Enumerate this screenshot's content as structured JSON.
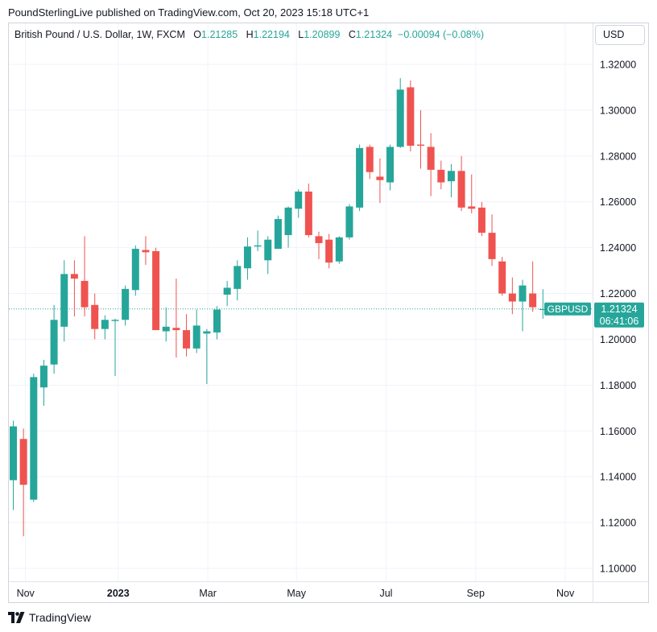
{
  "header": {
    "publisher": "PoundSterlingLive published on TradingView.com, Oct 20, 2023 15:18 UTC+1"
  },
  "legend": {
    "symbol": "British Pound / U.S. Dollar, 1W, FXCM",
    "o_label": "O",
    "o_value": "1.21285",
    "h_label": "H",
    "h_value": "1.22194",
    "l_label": "L",
    "l_value": "1.20899",
    "c_label": "C",
    "c_value": "1.21324",
    "change": "−0.00094 (−0.08%)"
  },
  "currency_button": "USD",
  "price_badge": {
    "symbol": "GBPUSD",
    "price": "1.21324",
    "countdown": "06:41:06"
  },
  "footer": {
    "brand": "TradingView"
  },
  "colors": {
    "up": "#26a69a",
    "down": "#ef5350",
    "grid": "#f0f3fa",
    "axis_text": "#131722"
  },
  "chart_data": {
    "type": "candlestick",
    "title": "British Pound / U.S. Dollar, 1W, FXCM",
    "ylim": [
      1.09,
      1.32
    ],
    "y_ticks": [
      "1.32000",
      "1.30000",
      "1.28000",
      "1.26000",
      "1.24000",
      "1.22000",
      "1.20000",
      "1.18000",
      "1.16000",
      "1.14000",
      "1.12000",
      "1.10000"
    ],
    "x_ticks": [
      {
        "label": "Nov",
        "bar": 1.2
      },
      {
        "label": "2023",
        "bar": 10.3,
        "bold": true
      },
      {
        "label": "Mar",
        "bar": 19.1
      },
      {
        "label": "May",
        "bar": 27.8
      },
      {
        "label": "Jul",
        "bar": 36.6
      },
      {
        "label": "Sep",
        "bar": 45.4
      },
      {
        "label": "Nov",
        "bar": 54.2
      }
    ],
    "last_price": 1.21324,
    "candles": [
      {
        "o": 1.1385,
        "h": 1.1645,
        "l": 1.1255,
        "c": 1.162
      },
      {
        "o": 1.1565,
        "h": 1.161,
        "l": 1.114,
        "c": 1.1365
      },
      {
        "o": 1.13,
        "h": 1.185,
        "l": 1.129,
        "c": 1.1835
      },
      {
        "o": 1.179,
        "h": 1.191,
        "l": 1.171,
        "c": 1.1885
      },
      {
        "o": 1.189,
        "h": 1.215,
        "l": 1.185,
        "c": 1.2085
      },
      {
        "o": 1.2055,
        "h": 1.2345,
        "l": 1.199,
        "c": 1.2285
      },
      {
        "o": 1.2285,
        "h": 1.2345,
        "l": 1.21,
        "c": 1.2265
      },
      {
        "o": 1.2255,
        "h": 1.245,
        "l": 1.21,
        "c": 1.214
      },
      {
        "o": 1.215,
        "h": 1.22,
        "l": 1.2,
        "c": 1.2045
      },
      {
        "o": 1.2045,
        "h": 1.2105,
        "l": 1.2,
        "c": 1.2085
      },
      {
        "o": 1.208,
        "h": 1.209,
        "l": 1.184,
        "c": 1.2085
      },
      {
        "o": 1.2085,
        "h": 1.2235,
        "l": 1.206,
        "c": 1.222
      },
      {
        "o": 1.2215,
        "h": 1.241,
        "l": 1.219,
        "c": 1.2395
      },
      {
        "o": 1.239,
        "h": 1.245,
        "l": 1.2325,
        "c": 1.238
      },
      {
        "o": 1.2385,
        "h": 1.24,
        "l": 1.2045,
        "c": 1.204
      },
      {
        "o": 1.2035,
        "h": 1.214,
        "l": 1.199,
        "c": 1.2055
      },
      {
        "o": 1.205,
        "h": 1.2265,
        "l": 1.192,
        "c": 1.204
      },
      {
        "o": 1.204,
        "h": 1.211,
        "l": 1.1925,
        "c": 1.196
      },
      {
        "o": 1.196,
        "h": 1.213,
        "l": 1.194,
        "c": 1.206
      },
      {
        "o": 1.2025,
        "h": 1.2045,
        "l": 1.1805,
        "c": 1.2035
      },
      {
        "o": 1.203,
        "h": 1.2145,
        "l": 1.2,
        "c": 1.213
      },
      {
        "o": 1.2195,
        "h": 1.2255,
        "l": 1.2145,
        "c": 1.2225
      },
      {
        "o": 1.222,
        "h": 1.2345,
        "l": 1.217,
        "c": 1.232
      },
      {
        "o": 1.231,
        "h": 1.2445,
        "l": 1.226,
        "c": 1.2405
      },
      {
        "o": 1.2405,
        "h": 1.2475,
        "l": 1.2385,
        "c": 1.241
      },
      {
        "o": 1.2345,
        "h": 1.245,
        "l": 1.2285,
        "c": 1.2435
      },
      {
        "o": 1.2395,
        "h": 1.254,
        "l": 1.2395,
        "c": 1.2525
      },
      {
        "o": 1.2455,
        "h": 1.258,
        "l": 1.24,
        "c": 1.2575
      },
      {
        "o": 1.257,
        "h": 1.2655,
        "l": 1.253,
        "c": 1.2645
      },
      {
        "o": 1.2645,
        "h": 1.268,
        "l": 1.2445,
        "c": 1.2455
      },
      {
        "o": 1.245,
        "h": 1.247,
        "l": 1.235,
        "c": 1.242
      },
      {
        "o": 1.2435,
        "h": 1.246,
        "l": 1.231,
        "c": 1.2335
      },
      {
        "o": 1.234,
        "h": 1.245,
        "l": 1.233,
        "c": 1.2445
      },
      {
        "o": 1.2445,
        "h": 1.259,
        "l": 1.2435,
        "c": 1.258
      },
      {
        "o": 1.2575,
        "h": 1.285,
        "l": 1.256,
        "c": 1.2835
      },
      {
        "o": 1.284,
        "h": 1.285,
        "l": 1.27,
        "c": 1.273
      },
      {
        "o": 1.271,
        "h": 1.279,
        "l": 1.2595,
        "c": 1.2695
      },
      {
        "o": 1.2685,
        "h": 1.285,
        "l": 1.265,
        "c": 1.284
      },
      {
        "o": 1.284,
        "h": 1.314,
        "l": 1.2835,
        "c": 1.309
      },
      {
        "o": 1.31,
        "h": 1.313,
        "l": 1.282,
        "c": 1.2845
      },
      {
        "o": 1.285,
        "h": 1.3,
        "l": 1.2745,
        "c": 1.2845
      },
      {
        "o": 1.284,
        "h": 1.29,
        "l": 1.2625,
        "c": 1.274
      },
      {
        "o": 1.274,
        "h": 1.278,
        "l": 1.2655,
        "c": 1.2685
      },
      {
        "o": 1.269,
        "h": 1.2765,
        "l": 1.262,
        "c": 1.2735
      },
      {
        "o": 1.2735,
        "h": 1.28,
        "l": 1.256,
        "c": 1.2575
      },
      {
        "o": 1.258,
        "h": 1.272,
        "l": 1.255,
        "c": 1.257
      },
      {
        "o": 1.2575,
        "h": 1.26,
        "l": 1.245,
        "c": 1.2465
      },
      {
        "o": 1.2465,
        "h": 1.2545,
        "l": 1.232,
        "c": 1.235
      },
      {
        "o": 1.234,
        "h": 1.236,
        "l": 1.219,
        "c": 1.22
      },
      {
        "o": 1.22,
        "h": 1.227,
        "l": 1.211,
        "c": 1.2165
      },
      {
        "o": 1.2165,
        "h": 1.226,
        "l": 1.2035,
        "c": 1.2235
      },
      {
        "o": 1.22,
        "h": 1.234,
        "l": 1.212,
        "c": 1.214
      },
      {
        "o": 1.2128,
        "h": 1.2219,
        "l": 1.209,
        "c": 1.2132
      }
    ]
  }
}
